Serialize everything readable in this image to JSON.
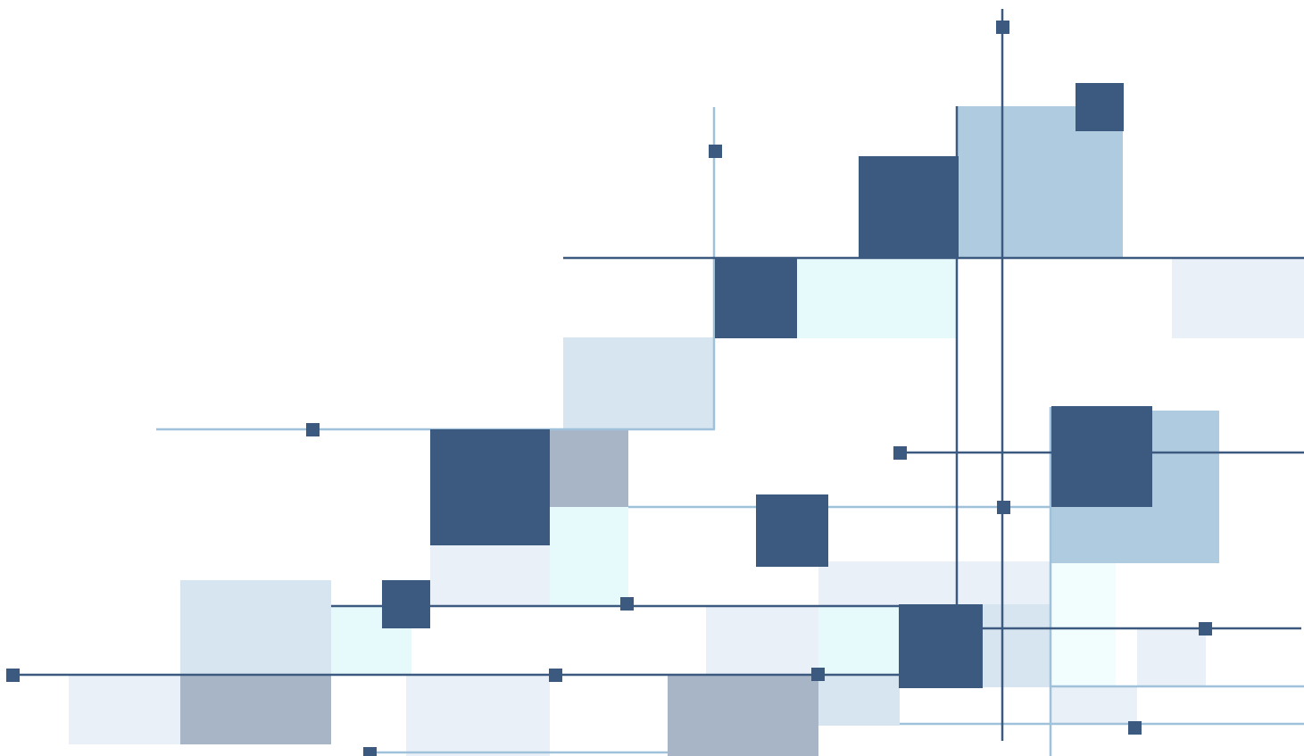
{
  "colors": {
    "navy": "#3c5a80",
    "light_blue": "#aecbe0",
    "pale_blue": "#d7e5f0",
    "very_pale_blue": "#e9f0f7",
    "mint": "#e7fafb",
    "mint_pale": "#f2fdfd",
    "gray_blue": "#a8b5c6",
    "line_light": "#9fc1da"
  }
}
